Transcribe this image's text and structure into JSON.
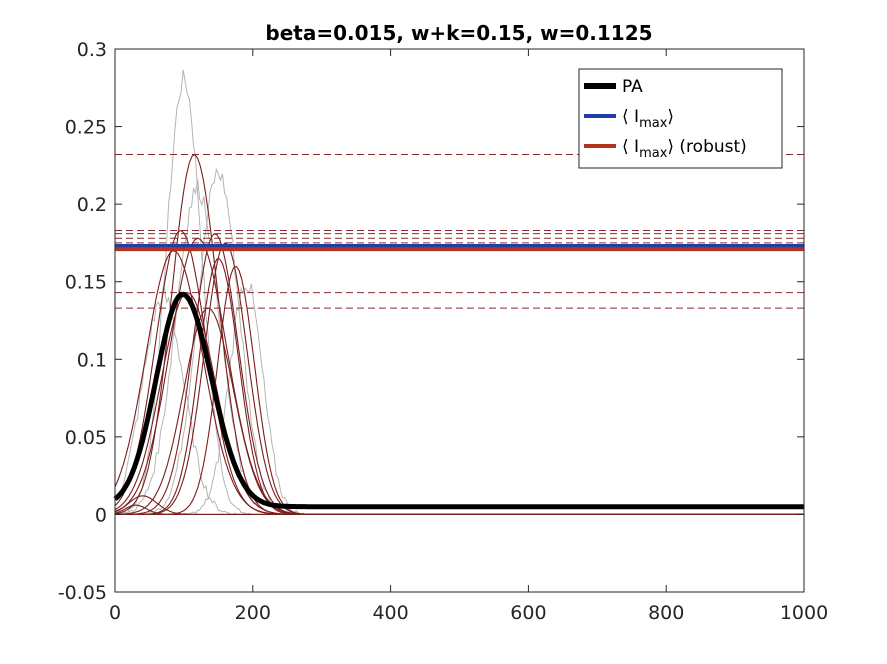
{
  "chart_data": {
    "type": "line",
    "title": "beta=0.015, w+k=0.15, w=0.1125",
    "xlabel": "",
    "ylabel": "",
    "xlim": [
      0,
      1000
    ],
    "ylim": [
      -0.05,
      0.3
    ],
    "xticks": [
      0,
      200,
      400,
      600,
      800,
      1000
    ],
    "yticks": [
      -0.05,
      0,
      0.05,
      0.1,
      0.15,
      0.2,
      0.25,
      0.3
    ],
    "xtick_labels": [
      "0",
      "200",
      "400",
      "600",
      "800",
      "1000"
    ],
    "ytick_labels": [
      "-0.05",
      "0",
      "0.05",
      "0.1",
      "0.15",
      "0.2",
      "0.25",
      "0.3"
    ],
    "grid": false,
    "legend_position": "top-right",
    "legend": [
      {
        "label": "PA",
        "sub": "",
        "suffix": "",
        "color": "#000000"
      },
      {
        "label": "⟨ I",
        "sub": "max",
        "suffix": "⟩",
        "color": "#1f3fa8"
      },
      {
        "label": "⟨ I",
        "sub": "max",
        "suffix": "⟩ (robust)",
        "color": "#b5331e"
      }
    ],
    "series": [
      {
        "name": "PA",
        "kind": "gaussian",
        "color": "#000000",
        "peak_x": 98,
        "peak_y": 0.142,
        "sigma_left": 38,
        "sigma_right": 42,
        "base_y": 0.005
      },
      {
        "name": "⟨ I_max ⟩",
        "kind": "hline",
        "color": "#1f3fa8",
        "y": 0.173
      },
      {
        "name": "⟨ I_max ⟩ (robust)",
        "kind": "hline",
        "color": "#b5331e",
        "y": 0.171
      }
    ],
    "sample_peak_levels": [
      0.232,
      0.183,
      0.181,
      0.178,
      0.175,
      0.143,
      0.133
    ],
    "sample_curves": [
      {
        "peak_x": 115,
        "peak_y": 0.232,
        "sigma": 33
      },
      {
        "peak_x": 95,
        "peak_y": 0.183,
        "sigma": 36
      },
      {
        "peak_x": 145,
        "peak_y": 0.181,
        "sigma": 32
      },
      {
        "peak_x": 120,
        "peak_y": 0.178,
        "sigma": 40
      },
      {
        "peak_x": 160,
        "peak_y": 0.175,
        "sigma": 30
      },
      {
        "peak_x": 105,
        "peak_y": 0.143,
        "sigma": 38
      },
      {
        "peak_x": 135,
        "peak_y": 0.133,
        "sigma": 35
      },
      {
        "peak_x": 150,
        "peak_y": 0.165,
        "sigma": 28
      },
      {
        "peak_x": 175,
        "peak_y": 0.16,
        "sigma": 26
      },
      {
        "peak_x": 85,
        "peak_y": 0.17,
        "sigma": 40
      },
      {
        "peak_x": 40,
        "peak_y": 0.012,
        "sigma": 20
      },
      {
        "peak_x": 30,
        "peak_y": 0.006,
        "sigma": 15
      }
    ],
    "noisy_curves": [
      {
        "peak_x": 100,
        "peak_y": 0.28,
        "sigma": 26
      },
      {
        "peak_x": 150,
        "peak_y": 0.22,
        "sigma": 30
      },
      {
        "peak_x": 70,
        "peak_y": 0.14,
        "sigma": 30
      },
      {
        "peak_x": 190,
        "peak_y": 0.15,
        "sigma": 24
      },
      {
        "peak_x": 120,
        "peak_y": 0.21,
        "sigma": 32
      }
    ],
    "colors": {
      "pa": "#000000",
      "mean": "#1f3fa8",
      "robust": "#b5331e",
      "sample": "#7a1e1e",
      "dashed": "#8b2a2a",
      "noisy": "#b4b4b4",
      "axis": "#262626"
    }
  }
}
